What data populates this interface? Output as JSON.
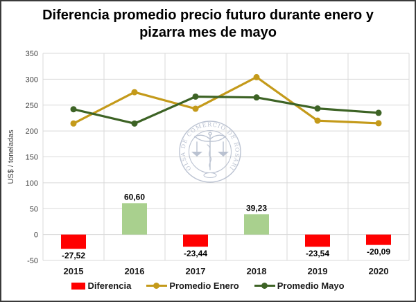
{
  "chart_data": {
    "type": "combo",
    "title": "Diferencia promedio precio futuro durante enero y pizarra mes de mayo",
    "ylabel": "US$ / toneladas",
    "categories": [
      "2015",
      "2016",
      "2017",
      "2018",
      "2019",
      "2020"
    ],
    "series": [
      {
        "name": "Diferencia",
        "type": "bar",
        "values": [
          -27.52,
          60.6,
          -23.44,
          39.23,
          -23.54,
          -20.09
        ],
        "value_labels": [
          "-27,52",
          "60,60",
          "-23,44",
          "39,23",
          "-23,54",
          "-20,09"
        ],
        "color_negative": "#FF0000",
        "color_positive": "#A9D08E"
      },
      {
        "name": "Promedio Enero",
        "type": "line",
        "values": [
          214.5,
          275.0,
          243.0,
          304.0,
          220.0,
          215.0
        ],
        "color": "#C49A1A"
      },
      {
        "name": "Promedio Mayo",
        "type": "line",
        "values": [
          242.0,
          214.4,
          266.4,
          264.8,
          243.5,
          235.1
        ],
        "color": "#3D6325"
      }
    ],
    "ylim": [
      -50,
      350
    ],
    "ytick_step": 50,
    "ytick_labels": [
      "-50",
      "0",
      "50",
      "100",
      "150",
      "200",
      "250",
      "300",
      "350"
    ],
    "grid": true,
    "legend_position": "bottom"
  },
  "watermark": {
    "text": "BOLSA DE COMERCIO DE ROSARIO",
    "color": "#aab3c6"
  },
  "styles": {
    "gridline": "#d9d9d9",
    "axis_text": "#3f3f3f",
    "figure_border": "#3a3a3a"
  }
}
